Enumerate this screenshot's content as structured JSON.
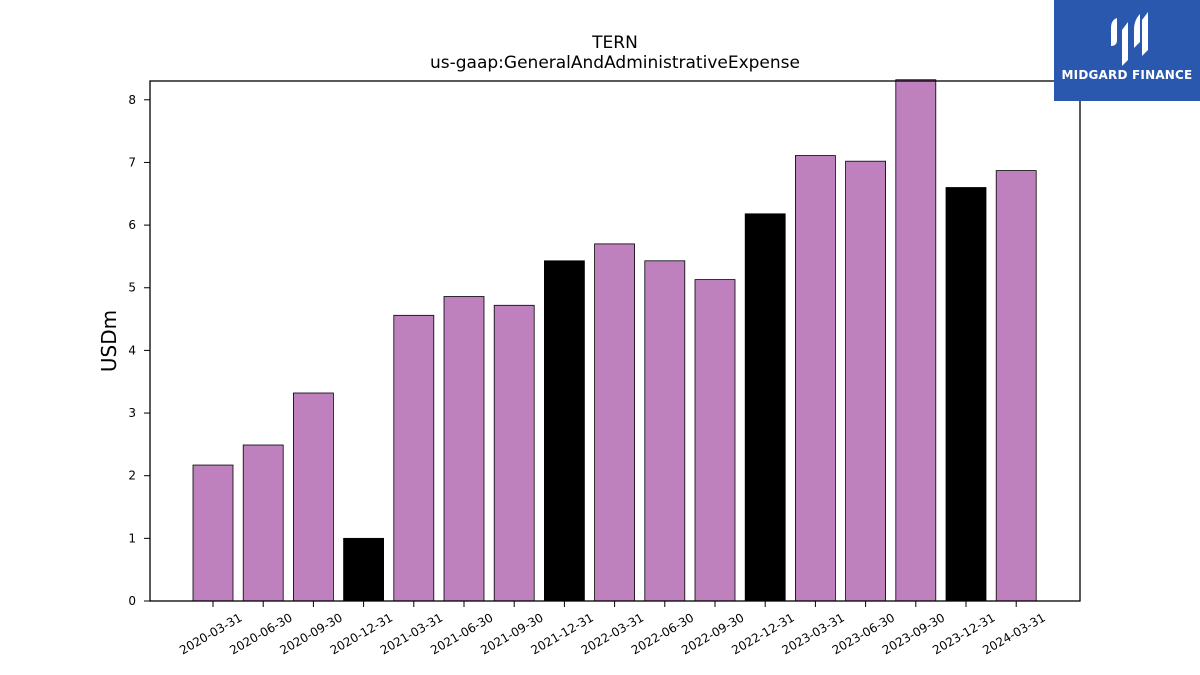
{
  "brand": {
    "name": "MIDGARD FINANCE",
    "icon": "midgard-logo-icon",
    "background_color": "#2a58ae"
  },
  "chart_data": {
    "type": "bar",
    "title": "TERN",
    "subtitle": "us-gaap:GeneralAndAdministrativeExpense",
    "xlabel": "",
    "ylabel": "USDm",
    "ylim": [
      0,
      8.3
    ],
    "yticks": [
      0,
      1,
      2,
      3,
      4,
      5,
      6,
      7,
      8
    ],
    "grid": false,
    "categories": [
      "2020-03-31",
      "2020-06-30",
      "2020-09-30",
      "2020-12-31",
      "2021-03-31",
      "2021-06-30",
      "2021-09-30",
      "2021-12-31",
      "2022-03-31",
      "2022-06-30",
      "2022-09-30",
      "2022-12-31",
      "2023-03-31",
      "2023-06-30",
      "2023-09-30",
      "2023-12-31",
      "2024-03-31"
    ],
    "values": [
      2.17,
      2.49,
      3.32,
      1.0,
      4.56,
      4.86,
      4.72,
      5.43,
      5.7,
      5.43,
      5.13,
      6.18,
      7.11,
      7.02,
      8.32,
      6.6,
      6.87
    ],
    "bar_colors": [
      "#bf80be",
      "#bf80be",
      "#bf80be",
      "#000000",
      "#bf80be",
      "#bf80be",
      "#bf80be",
      "#000000",
      "#bf80be",
      "#bf80be",
      "#bf80be",
      "#000000",
      "#bf80be",
      "#bf80be",
      "#bf80be",
      "#000000",
      "#bf80be"
    ]
  }
}
